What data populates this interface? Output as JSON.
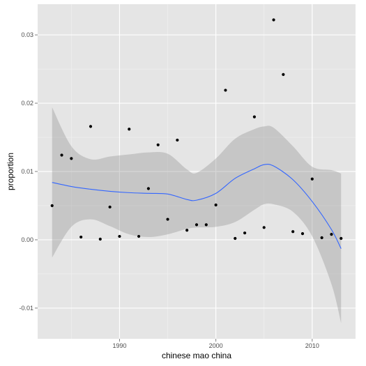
{
  "chart_data": {
    "type": "scatter",
    "title": "",
    "xlabel": "chinese mao china",
    "ylabel": "proportion",
    "xlim": [
      1981.5,
      2014.5
    ],
    "ylim": [
      -0.0145,
      0.0345
    ],
    "x_ticks": [
      1990,
      2000,
      2010
    ],
    "y_ticks": [
      -0.01,
      0.0,
      0.01,
      0.02,
      0.03
    ],
    "x_tick_labels": [
      "1990",
      "2000",
      "2010"
    ],
    "y_tick_labels": [
      "-0.01",
      "0.00",
      "0.01",
      "0.02",
      "0.03"
    ],
    "grid": true,
    "points": [
      {
        "x": 1983,
        "y": 0.005
      },
      {
        "x": 1984,
        "y": 0.0124
      },
      {
        "x": 1985,
        "y": 0.0119
      },
      {
        "x": 1986,
        "y": 0.0004
      },
      {
        "x": 1987,
        "y": 0.0166
      },
      {
        "x": 1988,
        "y": 0.0001
      },
      {
        "x": 1989,
        "y": 0.0048
      },
      {
        "x": 1990,
        "y": 0.0005
      },
      {
        "x": 1991,
        "y": 0.0162
      },
      {
        "x": 1992,
        "y": 0.0005
      },
      {
        "x": 1993,
        "y": 0.0075
      },
      {
        "x": 1994,
        "y": 0.0139
      },
      {
        "x": 1995,
        "y": 0.003
      },
      {
        "x": 1996,
        "y": 0.0146
      },
      {
        "x": 1997,
        "y": 0.0014
      },
      {
        "x": 1998,
        "y": 0.0022
      },
      {
        "x": 1999,
        "y": 0.0022
      },
      {
        "x": 2000,
        "y": 0.0051
      },
      {
        "x": 2001,
        "y": 0.0219
      },
      {
        "x": 2002,
        "y": 0.0002
      },
      {
        "x": 2003,
        "y": 0.001
      },
      {
        "x": 2004,
        "y": 0.018
      },
      {
        "x": 2005,
        "y": 0.0018
      },
      {
        "x": 2006,
        "y": 0.0322
      },
      {
        "x": 2007,
        "y": 0.0242
      },
      {
        "x": 2008,
        "y": 0.0012
      },
      {
        "x": 2009,
        "y": 0.0009
      },
      {
        "x": 2010,
        "y": 0.0089
      },
      {
        "x": 2011,
        "y": 0.0003
      },
      {
        "x": 2012,
        "y": 0.0008
      },
      {
        "x": 2013,
        "y": 0.0002
      }
    ],
    "smooth": {
      "x": [
        1983,
        1985,
        1987,
        1989,
        1991,
        1993,
        1995,
        1997,
        1998,
        2000,
        2002,
        2004,
        2005,
        2006,
        2008,
        2010,
        2012,
        2013
      ],
      "y": [
        0.0084,
        0.0078,
        0.0074,
        0.0071,
        0.0069,
        0.0068,
        0.0067,
        0.0059,
        0.0058,
        0.0068,
        0.009,
        0.0104,
        0.011,
        0.0108,
        0.0088,
        0.0056,
        0.0015,
        -0.0013
      ],
      "lower": [
        -0.0026,
        0.0019,
        0.003,
        0.002,
        0.0008,
        0.0004,
        0.0008,
        0.0016,
        0.0018,
        0.0019,
        0.0026,
        0.0044,
        0.0052,
        0.0052,
        0.0041,
        0.0005,
        -0.0065,
        -0.0122
      ],
      "upper": [
        0.0194,
        0.0137,
        0.0118,
        0.0122,
        0.0125,
        0.0128,
        0.0126,
        0.0103,
        0.0098,
        0.0119,
        0.0148,
        0.0162,
        0.0166,
        0.0164,
        0.0137,
        0.0107,
        0.0102,
        0.0097
      ]
    },
    "colors": {
      "panel_background": "#e5e5e5",
      "grid_major": "#ffffff",
      "grid_minor": "#f2f2f2",
      "point": "#000000",
      "smooth_line": "#3366ff",
      "ribbon": "#999999"
    }
  }
}
